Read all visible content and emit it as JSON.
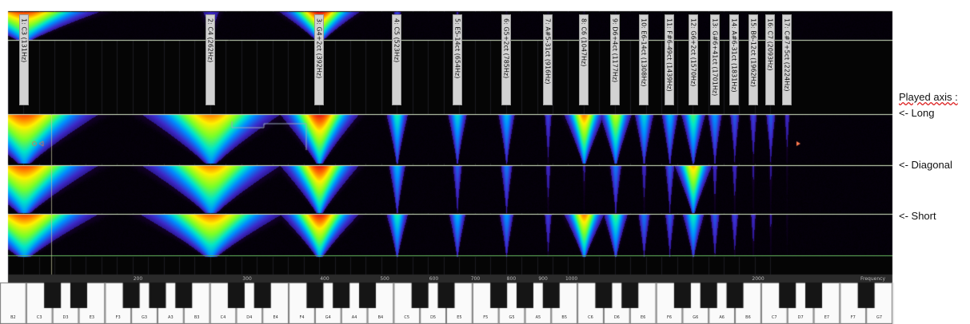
{
  "harmonics": [
    {
      "label": "1: C3 (131Hz)",
      "freq": 131
    },
    {
      "label": "2: C4 (262Hz)",
      "freq": 262
    },
    {
      "label": "3: G4+2ct (392Hz)",
      "freq": 392
    },
    {
      "label": "4: C5 (523Hz)",
      "freq": 523
    },
    {
      "label": "5: E5-14ct (654Hz)",
      "freq": 654
    },
    {
      "label": "6: G5+2ct (785Hz)",
      "freq": 785
    },
    {
      "label": "7: A#5-31ct (916Hz)",
      "freq": 916
    },
    {
      "label": "8: C6 (1047Hz)",
      "freq": 1047
    },
    {
      "label": "9: D6+4ct (1177Hz)",
      "freq": 1177
    },
    {
      "label": "10: E6-14ct (1308Hz)",
      "freq": 1308
    },
    {
      "label": "11: F#6-49ct (1439Hz)",
      "freq": 1439
    },
    {
      "label": "12: G6+2ct (1570Hz)",
      "freq": 1570
    },
    {
      "label": "13: G#6+41ct (1701Hz)",
      "freq": 1701
    },
    {
      "label": "14: A#6-31ct (1831Hz)",
      "freq": 1831
    },
    {
      "label": "15: B6-12ct (1962Hz)",
      "freq": 1962
    },
    {
      "label": "16: C7 (2093Hz)",
      "freq": 2093
    },
    {
      "label": "17: C#7+5ct (2224Hz)",
      "freq": 2224
    }
  ],
  "side_labels": {
    "played_axis": "Played axis :",
    "long": "<- Long",
    "diagonal": "<- Diagonal",
    "short": "<- Short"
  },
  "frequency_axis": {
    "ticks": [
      "200",
      "300",
      "400",
      "500",
      "600",
      "700",
      "800",
      "900",
      "1000",
      "2000"
    ],
    "tick_values": [
      200,
      300,
      400,
      500,
      600,
      700,
      800,
      900,
      1000,
      2000
    ],
    "unit_label": "Frequency"
  },
  "keyboard": {
    "white_keys": [
      "B2",
      "C3",
      "D3",
      "E3",
      "F3",
      "G3",
      "A3",
      "B3",
      "C4",
      "D4",
      "E4",
      "F4",
      "G4",
      "A4",
      "B4",
      "C5",
      "D5",
      "E5",
      "F5",
      "G5",
      "A5",
      "B5",
      "C6",
      "D6",
      "E6",
      "F6",
      "G6",
      "A6",
      "B6",
      "C7",
      "D7",
      "E7",
      "F7",
      "G7"
    ]
  }
}
